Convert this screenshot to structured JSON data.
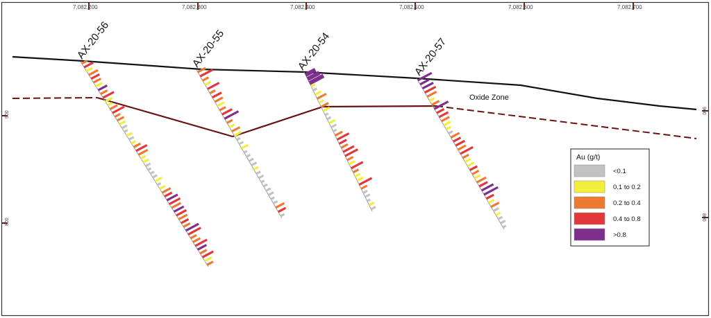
{
  "section": {
    "easting_ticks": [
      "7,082,200",
      "7,082,300",
      "7,082,400",
      "7,082,500",
      "7,082,600",
      "7,082,700"
    ],
    "elevation_ticks": [
      "900",
      "800"
    ]
  },
  "drillholes": [
    {
      "id": "AX-20-56"
    },
    {
      "id": "AX-20-55"
    },
    {
      "id": "AX-20-54"
    },
    {
      "id": "AX-20-57"
    }
  ],
  "annotations": {
    "oxide_zone": "Oxide Zone"
  },
  "legend": {
    "title": "Au (g/t)",
    "items": [
      {
        "label": "<0.1",
        "color": "#c2c2c2"
      },
      {
        "label": "0.1 to 0.2",
        "color": "#f3ee3c"
      },
      {
        "label": "0.2 to 0.4",
        "color": "#ec7b30"
      },
      {
        "label": "0.4 to 0.8",
        "color": "#e2383c"
      },
      {
        "label": ">0.8",
        "color": "#7d2f8e"
      }
    ]
  },
  "colors": {
    "topography": "#111111",
    "oxide_boundary": "#6b1010",
    "frame_ticks": "#6b1a1a"
  }
}
